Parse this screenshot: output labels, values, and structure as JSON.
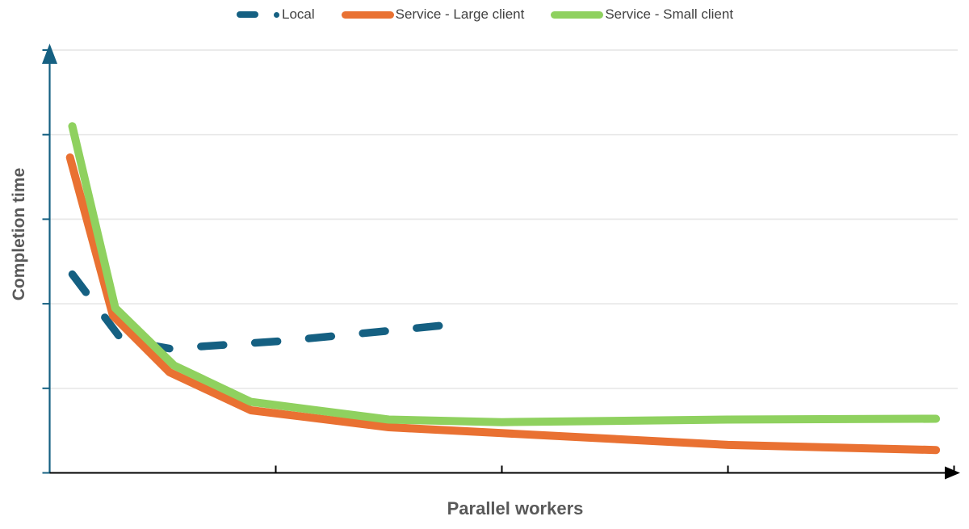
{
  "legend": {
    "items": [
      {
        "label": "Local",
        "color": "#156082",
        "style": "dashed"
      },
      {
        "label": "Service - Large client",
        "color": "#E97132",
        "style": "solid"
      },
      {
        "label": "Service - Small client",
        "color": "#8FD15F",
        "style": "solid"
      }
    ]
  },
  "axes": {
    "y_title": "Completion time",
    "x_title": "Parallel workers"
  },
  "chart_data": {
    "type": "line",
    "title": "",
    "xlabel": "Parallel workers",
    "ylabel": "Completion time",
    "note": "Axes are unlabeled; x values are in x-axis tick units (ticks at 1,2,3,4), y values in horizontal-gridline units (gridlines at 1..5). Estimated from pixels.",
    "x_axis": {
      "tick_positions_units": [
        1,
        2,
        3,
        4
      ],
      "tick_labels": [],
      "range_units": [
        0,
        4
      ],
      "arrow": true
    },
    "y_axis": {
      "gridlines": 5,
      "tick_labels": [],
      "range_units": [
        0,
        5
      ],
      "arrow": true
    },
    "colors": {
      "y_axis": "#156082",
      "x_axis": "#000000",
      "gridline": "#E8E8E8",
      "background": "#FFFFFF"
    },
    "series": [
      {
        "name": "Local",
        "color": "#156082",
        "dashed": true,
        "points": [
          [
            0.1,
            2.35
          ],
          [
            0.32,
            1.57
          ],
          [
            0.53,
            1.47
          ],
          [
            1.03,
            1.56
          ],
          [
            1.5,
            1.68
          ],
          [
            1.8,
            1.76
          ]
        ]
      },
      {
        "name": "Service - Large client",
        "color": "#E97132",
        "dashed": false,
        "points": [
          [
            0.09,
            3.73
          ],
          [
            0.28,
            1.86
          ],
          [
            0.53,
            1.19
          ],
          [
            0.89,
            0.74
          ],
          [
            1.5,
            0.54
          ],
          [
            2.0,
            0.47
          ],
          [
            3.0,
            0.33
          ],
          [
            3.92,
            0.27
          ]
        ]
      },
      {
        "name": "Service - Small client",
        "color": "#8FD15F",
        "dashed": false,
        "points": [
          [
            0.1,
            4.1
          ],
          [
            0.29,
            1.95
          ],
          [
            0.55,
            1.27
          ],
          [
            0.89,
            0.84
          ],
          [
            1.5,
            0.63
          ],
          [
            2.0,
            0.6
          ],
          [
            3.0,
            0.63
          ],
          [
            3.92,
            0.64
          ]
        ]
      }
    ]
  }
}
